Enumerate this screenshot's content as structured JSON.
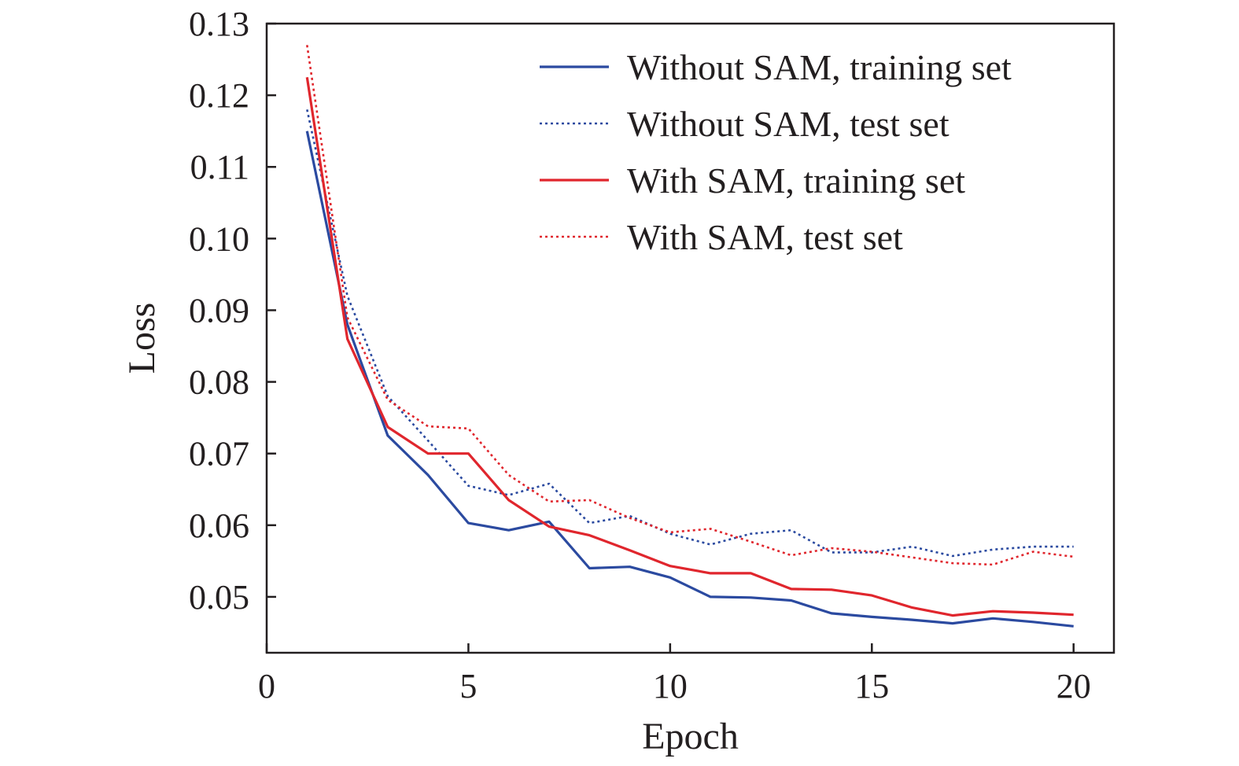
{
  "chart_data": {
    "type": "line",
    "xlabel": "Epoch",
    "ylabel": "Loss",
    "xlim": [
      0,
      21
    ],
    "ylim": [
      0.0422,
      0.13
    ],
    "x_ticks": [
      0,
      5,
      10,
      15,
      20
    ],
    "x_tick_labels": [
      "0",
      "5",
      "10",
      "15",
      "20"
    ],
    "y_ticks": [
      0.05,
      0.06,
      0.07,
      0.08,
      0.09,
      0.1,
      0.11,
      0.12,
      0.13
    ],
    "y_tick_labels": [
      "0.05",
      "0.06",
      "0.07",
      "0.08",
      "0.09",
      "0.10",
      "0.11",
      "0.12",
      "0.13"
    ],
    "grid": false,
    "legend_position": "top-right",
    "x": [
      1,
      2,
      3,
      4,
      5,
      6,
      7,
      8,
      9,
      10,
      11,
      12,
      13,
      14,
      15,
      16,
      17,
      18,
      19,
      20
    ],
    "series": [
      {
        "name": "Without SAM, training set",
        "color": "#2b4aa0",
        "style": "solid",
        "values": [
          0.115,
          0.088,
          0.0725,
          0.067,
          0.0603,
          0.0593,
          0.0605,
          0.054,
          0.0542,
          0.0527,
          0.05,
          0.0499,
          0.0495,
          0.0477,
          0.0472,
          0.0468,
          0.0463,
          0.047,
          0.0465,
          0.0459
        ]
      },
      {
        "name": "Without SAM, test set",
        "color": "#2b4aa0",
        "style": "dotted",
        "values": [
          0.118,
          0.092,
          0.078,
          0.0718,
          0.0655,
          0.0642,
          0.0658,
          0.0603,
          0.0613,
          0.0588,
          0.0573,
          0.0588,
          0.0593,
          0.0562,
          0.0562,
          0.057,
          0.0557,
          0.0566,
          0.057,
          0.057
        ]
      },
      {
        "name": "With SAM, training set",
        "color": "#e0262d",
        "style": "solid",
        "values": [
          0.1225,
          0.086,
          0.0737,
          0.07,
          0.07,
          0.0635,
          0.0598,
          0.0586,
          0.0565,
          0.0543,
          0.0533,
          0.0533,
          0.0511,
          0.051,
          0.0502,
          0.0485,
          0.0474,
          0.048,
          0.0478,
          0.0475
        ]
      },
      {
        "name": "With SAM, test set",
        "color": "#e0262d",
        "style": "dotted",
        "values": [
          0.127,
          0.089,
          0.0775,
          0.0738,
          0.0735,
          0.067,
          0.0633,
          0.0635,
          0.061,
          0.059,
          0.0595,
          0.0577,
          0.0558,
          0.0568,
          0.0563,
          0.0555,
          0.0547,
          0.0545,
          0.0563,
          0.0556
        ]
      }
    ]
  }
}
